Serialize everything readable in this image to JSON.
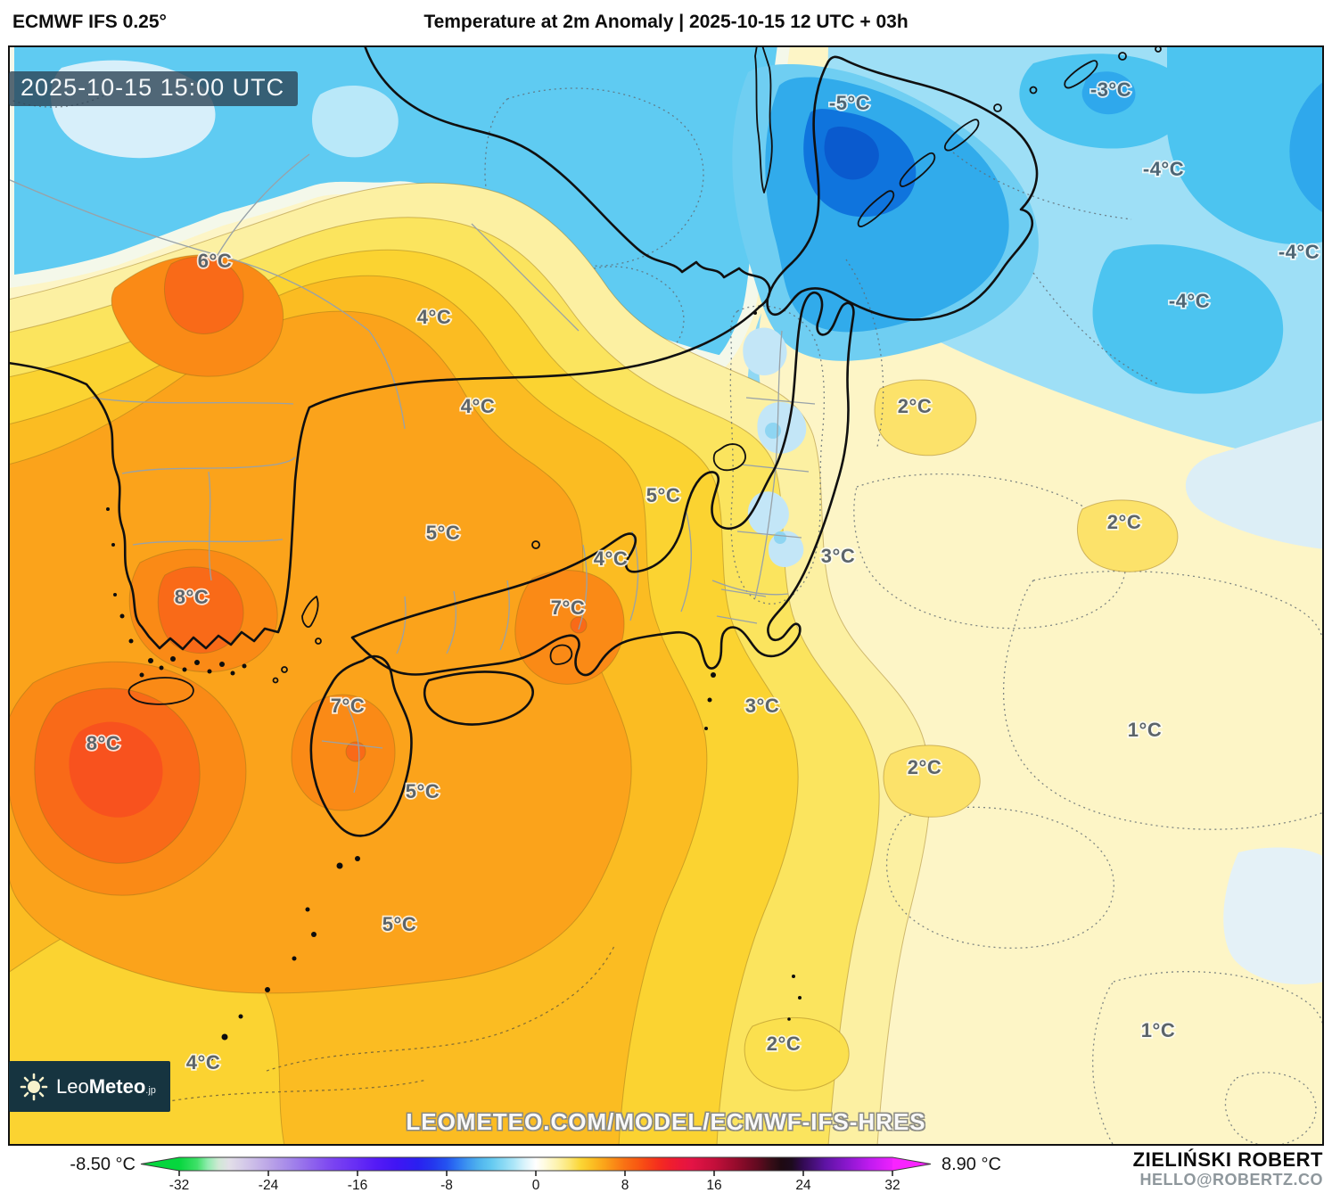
{
  "header": {
    "model_label": "ECMWF IFS 0.25°",
    "chart_title": "Temperature at 2m Anomaly | 2025-10-15 12 UTC + 03h"
  },
  "map": {
    "timestamp_overlay": "2025-10-15 15:00 UTC",
    "watermark": "LEOMETEO.COM/MODEL/ECMWF-IFS-HRES",
    "temperature_labels": [
      "6°C",
      "4°C",
      "4°C",
      "2°C",
      "5°C",
      "2°C",
      "5°C",
      "3°C",
      "4°C",
      "8°C",
      "7°C",
      "7°C",
      "3°C",
      "1°C",
      "8°C",
      "2°C",
      "5°C",
      "5°C",
      "2°C",
      "1°C",
      "4°C",
      "-5°C",
      "-3°C",
      "-4°C",
      "-4°C",
      "-4°C"
    ]
  },
  "logo": {
    "brand_regular": "Leo",
    "brand_bold": "Meteo",
    "brand_suffix": ".jp",
    "bg_color": "#163440"
  },
  "colorbar": {
    "min_label": "-8.50 °C",
    "max_label": "8.90 °C",
    "tick_labels": [
      "-32",
      "-24",
      "-16",
      "-8",
      "0",
      "8",
      "16",
      "24",
      "32"
    ],
    "left_arrow_color": "#06d63e",
    "right_arrow_color": "#f824ff",
    "gradient_stops": [
      [
        0,
        "#06d63e"
      ],
      [
        2.5,
        "#3fe068"
      ],
      [
        4,
        "#90ecae"
      ],
      [
        5.5,
        "#cfe9d4"
      ],
      [
        7,
        "#e2dfe8"
      ],
      [
        9.5,
        "#d2c6e9"
      ],
      [
        12.5,
        "#bca6e7"
      ],
      [
        15.5,
        "#a487ea"
      ],
      [
        18.5,
        "#8f64ed"
      ],
      [
        21.5,
        "#7b44f1"
      ],
      [
        24.5,
        "#6930f4"
      ],
      [
        27.5,
        "#551bf6"
      ],
      [
        30.5,
        "#4015f4"
      ],
      [
        33.5,
        "#2a20f0"
      ],
      [
        35.5,
        "#2436ee"
      ],
      [
        37.5,
        "#2453f0"
      ],
      [
        39,
        "#2e76f2"
      ],
      [
        40.5,
        "#3e97f0"
      ],
      [
        42,
        "#4fb3ee"
      ],
      [
        43.75,
        "#63c9f1"
      ],
      [
        45.3,
        "#86d8f4"
      ],
      [
        46.9,
        "#ace6f8"
      ],
      [
        48.4,
        "#d9f3fb"
      ],
      [
        50,
        "#ffffff"
      ],
      [
        51.2,
        "#fffbe0"
      ],
      [
        53.1,
        "#fdf2aa"
      ],
      [
        54.7,
        "#fce674"
      ],
      [
        56.25,
        "#fbd636"
      ],
      [
        57.8,
        "#fbc024"
      ],
      [
        59.4,
        "#fba71a"
      ],
      [
        60.9,
        "#fa8c16"
      ],
      [
        62.5,
        "#f97014"
      ],
      [
        64.1,
        "#f85b12"
      ],
      [
        65.6,
        "#f74416"
      ],
      [
        67.2,
        "#f52e1e"
      ],
      [
        68.75,
        "#f01f2c"
      ],
      [
        70.3,
        "#ea173a"
      ],
      [
        71.9,
        "#e31345"
      ],
      [
        75,
        "#c40f3b"
      ],
      [
        78.1,
        "#950b2c"
      ],
      [
        81.25,
        "#5e0a1f"
      ],
      [
        82.8,
        "#3b0d17"
      ],
      [
        84.4,
        "#1f0a12"
      ],
      [
        85.9,
        "#1d0b1e"
      ],
      [
        87.5,
        "#330a54"
      ],
      [
        89.1,
        "#48107c"
      ],
      [
        90.6,
        "#5e13a4"
      ],
      [
        93.75,
        "#8c17cf"
      ],
      [
        96.9,
        "#c11bf0"
      ],
      [
        100,
        "#ec21fd"
      ]
    ]
  },
  "attribution": {
    "author": "ZIELIŃSKI ROBERT",
    "contact": "HELLO@ROBERTZ.CO"
  }
}
